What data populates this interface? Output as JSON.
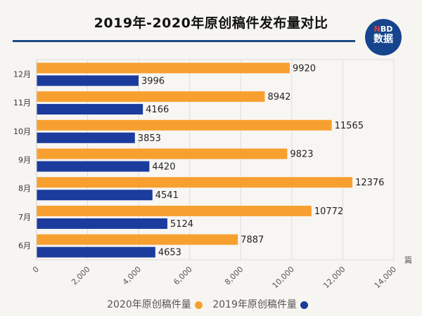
{
  "title": "2019年-2020年原创稿件发布量对比",
  "logo": {
    "line1_n": "N",
    "line1_rest": "BD",
    "line2": "数据"
  },
  "chart_data": {
    "type": "bar",
    "orientation": "horizontal",
    "title": "2019年-2020年原创稿件发布量对比",
    "categories": [
      "12月",
      "11月",
      "10月",
      "9月",
      "8月",
      "7月",
      "6月"
    ],
    "series": [
      {
        "name": "2020年原创稿件量",
        "color": "#f7a030",
        "values": [
          9920,
          8942,
          11565,
          9823,
          12376,
          10772,
          7887
        ]
      },
      {
        "name": "2019年原创稿件量",
        "color": "#1b3c9c",
        "values": [
          3996,
          4166,
          3853,
          4420,
          4541,
          5124,
          4653
        ]
      }
    ],
    "xlim": [
      0,
      14000
    ],
    "xticks": [
      "0",
      "2,000",
      "4,000",
      "6,000",
      "8,000",
      "10,000",
      "12,000",
      "14,000"
    ],
    "xunit": "篇",
    "grid": true,
    "data_labels": true,
    "legend": "bottom"
  }
}
